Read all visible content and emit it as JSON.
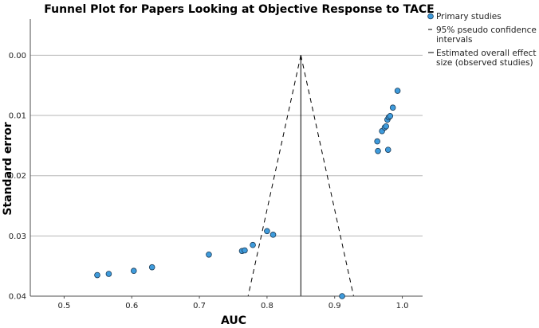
{
  "chart_data": {
    "type": "scatter",
    "title": "Funnel Plot for Papers Looking at Objective Response to TACE",
    "xlabel": "AUC",
    "ylabel": "Standard error",
    "xlim": [
      0.45,
      1.03
    ],
    "ylim": [
      0.04,
      -0.006
    ],
    "y_inverted": true,
    "x_ticks": [
      "0.5",
      "0.6",
      "0.7",
      "0.8",
      "0.9",
      "1.0"
    ],
    "y_ticks": [
      "0.00",
      "0.01",
      "0.02",
      "0.03",
      "0.04"
    ],
    "grid": "horizontal",
    "legend_position": "top-right",
    "legend": [
      {
        "label": "Primary studies",
        "kind": "marker"
      },
      {
        "label": "95% pseudo confidence intervals",
        "kind": "dashed-line"
      },
      {
        "label": "Estimated overall effect size (observed studies)",
        "kind": "solid-line"
      }
    ],
    "overall_effect": 0.85,
    "ci_lines": [
      {
        "x": [
          0.85,
          0.772
        ],
        "y": [
          0.0,
          0.04
        ]
      },
      {
        "x": [
          0.85,
          0.928
        ],
        "y": [
          0.0,
          0.04
        ]
      }
    ],
    "points": {
      "x": [
        0.549,
        0.566,
        0.603,
        0.63,
        0.714,
        0.763,
        0.767,
        0.779,
        0.8,
        0.809,
        0.911,
        0.963,
        0.964,
        0.97,
        0.974,
        0.976,
        0.978,
        0.98,
        0.982,
        0.986,
        0.993,
        0.979
      ],
      "y": [
        0.0365,
        0.0363,
        0.0358,
        0.0352,
        0.0331,
        0.0325,
        0.0324,
        0.0315,
        0.0292,
        0.0298,
        0.04,
        0.0143,
        0.0159,
        0.0126,
        0.012,
        0.0118,
        0.0107,
        0.0103,
        0.0101,
        0.0087,
        0.0059,
        0.0157
      ]
    },
    "colors": {
      "marker_fill": "#3E9BDC",
      "marker_stroke": "#1b3a55",
      "grid": "#b5b5b5",
      "frame": "#4d4d4d"
    }
  }
}
